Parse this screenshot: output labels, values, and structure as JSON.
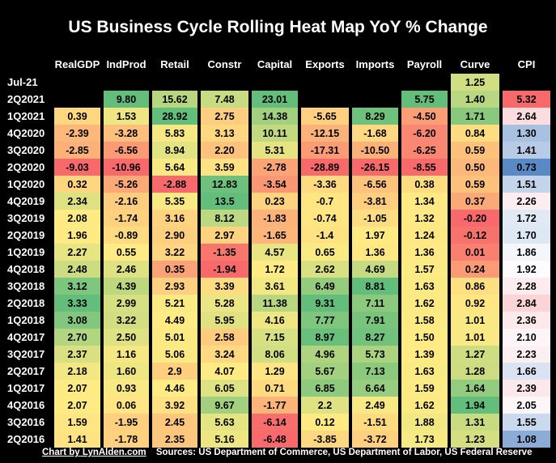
{
  "chart_data": {
    "type": "heatmap",
    "title": "US Business Cycle Rolling Heat Map YoY % Change",
    "columns": [
      "RealGDP",
      "IndProd",
      "Retail",
      "Constr",
      "Capital",
      "Exports",
      "Imports",
      "Payroll",
      "Curve",
      "CPI"
    ],
    "rows": [
      {
        "label": "Jul-21",
        "values": [
          null,
          null,
          null,
          null,
          null,
          null,
          null,
          null,
          "1.25",
          null
        ]
      },
      {
        "label": "2Q2021",
        "values": [
          null,
          "9.80",
          "15.62",
          "7.48",
          "23.01",
          null,
          null,
          "5.75",
          "1.40",
          "5.32"
        ]
      },
      {
        "label": "1Q2021",
        "values": [
          "0.39",
          "1.53",
          "28.92",
          "2.75",
          "14.38",
          "-5.65",
          "8.29",
          "-4.50",
          "1.71",
          "2.64"
        ]
      },
      {
        "label": "4Q2020",
        "values": [
          "-2.39",
          "-3.28",
          "5.83",
          "3.13",
          "10.11",
          "-12.15",
          "-1.68",
          "-6.20",
          "0.84",
          "1.30"
        ]
      },
      {
        "label": "3Q2020",
        "values": [
          "-2.85",
          "-6.56",
          "8.94",
          "2.20",
          "5.31",
          "-17.31",
          "-10.50",
          "-6.25",
          "0.59",
          "1.41"
        ]
      },
      {
        "label": "2Q2020",
        "values": [
          "-9.03",
          "-10.96",
          "5.64",
          "3.59",
          "-2.78",
          "-28.89",
          "-26.15",
          "-8.55",
          "0.50",
          "0.73"
        ]
      },
      {
        "label": "1Q2020",
        "values": [
          "0.32",
          "-5.26",
          "-2.88",
          "12.83",
          "-3.54",
          "-3.36",
          "-6.56",
          "0.38",
          "0.59",
          "1.51"
        ]
      },
      {
        "label": "4Q2019",
        "values": [
          "2.34",
          "-2.16",
          "5.35",
          "13.5",
          "0.23",
          "-0.7",
          "-3.81",
          "1.34",
          "0.37",
          "2.26"
        ]
      },
      {
        "label": "3Q2019",
        "values": [
          "2.08",
          "-1.74",
          "3.16",
          "8.12",
          "-1.83",
          "-0.74",
          "-1.05",
          "1.32",
          "-0.20",
          "1.72"
        ]
      },
      {
        "label": "2Q2019",
        "values": [
          "1.96",
          "-0.89",
          "2.90",
          "2.97",
          "-1.65",
          "-1.4",
          "1.97",
          "1.24",
          "-0.12",
          "1.70"
        ]
      },
      {
        "label": "1Q2019",
        "values": [
          "2.27",
          "0.55",
          "3.22",
          "-1.35",
          "4.57",
          "0.65",
          "1.36",
          "1.36",
          "0.01",
          "1.86"
        ]
      },
      {
        "label": "4Q2018",
        "values": [
          "2.48",
          "2.46",
          "0.35",
          "-1.94",
          "1.72",
          "2.62",
          "4.69",
          "1.57",
          "0.24",
          "1.92"
        ]
      },
      {
        "label": "3Q2018",
        "values": [
          "3.12",
          "4.39",
          "2.93",
          "3.39",
          "3.61",
          "6.49",
          "8.81",
          "1.63",
          "0.86",
          "2.28"
        ]
      },
      {
        "label": "2Q2018",
        "values": [
          "3.33",
          "2.99",
          "5.21",
          "5.28",
          "11.38",
          "9.31",
          "7.11",
          "1.62",
          "0.92",
          "2.84"
        ]
      },
      {
        "label": "1Q2018",
        "values": [
          "3.08",
          "3.22",
          "4.49",
          "5.95",
          "4.16",
          "7.77",
          "7.91",
          "1.58",
          "1.01",
          "2.36"
        ]
      },
      {
        "label": "4Q2017",
        "values": [
          "2.70",
          "2.50",
          "5.01",
          "2.58",
          "7.15",
          "8.97",
          "8.27",
          "1.50",
          "1.01",
          "2.10"
        ]
      },
      {
        "label": "3Q2017",
        "values": [
          "2.37",
          "1.16",
          "5.06",
          "3.24",
          "8.06",
          "4.96",
          "5.73",
          "1.39",
          "1.27",
          "2.23"
        ]
      },
      {
        "label": "2Q2017",
        "values": [
          "2.18",
          "1.60",
          "2.9",
          "4.07",
          "1.29",
          "5.67",
          "7.13",
          "1.63",
          "1.28",
          "1.66"
        ]
      },
      {
        "label": "1Q2017",
        "values": [
          "2.07",
          "0.93",
          "4.46",
          "6.05",
          "0.71",
          "6.85",
          "6.64",
          "1.59",
          "1.64",
          "2.39"
        ]
      },
      {
        "label": "4Q2016",
        "values": [
          "2.07",
          "0.06",
          "3.92",
          "9.67",
          "-1.77",
          "2.2",
          "2.49",
          "1.62",
          "1.94",
          "2.05"
        ]
      },
      {
        "label": "3Q2016",
        "values": [
          "1.59",
          "-1.95",
          "2.45",
          "5.63",
          "-6.14",
          "0.12",
          "-1.51",
          "1.88",
          "1.31",
          "1.55"
        ]
      },
      {
        "label": "2Q2016",
        "values": [
          "1.41",
          "-1.78",
          "2.35",
          "5.16",
          "-6.48",
          "-3.85",
          "-3.72",
          "1.73",
          "1.23",
          "1.08"
        ]
      }
    ],
    "color_scale": {
      "low": "#f8696b",
      "mid": "#ffeb84",
      "high": "#63be7b",
      "cpi_low": "#5a8ac6",
      "cpi_mid": "#fcfcff",
      "cpi_high": "#f8696b"
    }
  },
  "footer": {
    "credit": "Chart by LynAlden.com",
    "sources": "Sources: US Department of Commerce, US Department of Labor, US Federal Reserve"
  }
}
